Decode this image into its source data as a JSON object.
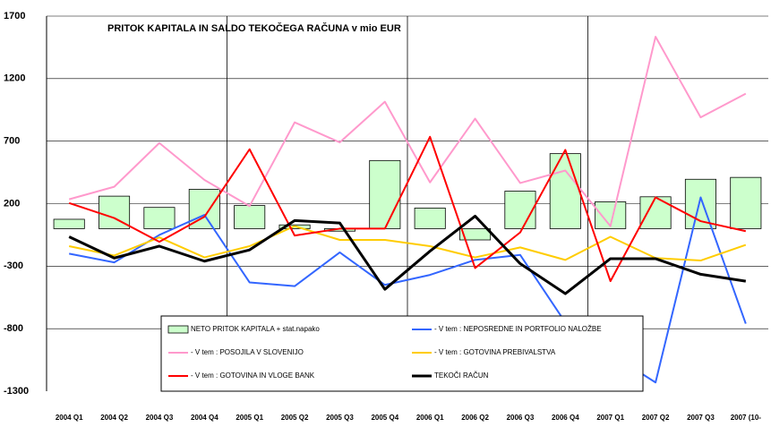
{
  "chart_data": {
    "type": "bar",
    "title": "PRITOK KAPITALA IN SALDO TEKOČEGA RAČUNA v mio EUR",
    "categories": [
      "2004 Q1",
      "2004 Q2",
      "2004 Q3",
      "2004 Q4",
      "2005 Q1",
      "2005 Q2",
      "2005 Q3",
      "2005 Q4",
      "2006 Q1",
      "2006 Q2",
      "2006 Q3",
      "2006 Q4",
      "2007 Q1",
      "2007 Q2",
      "2007 Q3",
      "2007 (10-"
    ],
    "ylim": [
      -1300,
      1700
    ],
    "yticks": [
      -1300,
      -800,
      -300,
      200,
      700,
      1200,
      1700
    ],
    "grid": true,
    "series": [
      {
        "name": "NETO PRITOK KAPITALA + stat.napako",
        "type": "bar",
        "color": "#ccffcc",
        "values": [
          75,
          260,
          170,
          315,
          185,
          30,
          -20,
          545,
          165,
          -90,
          300,
          600,
          215,
          255,
          395,
          410
        ]
      },
      {
        "name": "- V tem : NEPOSREDNE IN PORTFOLIO NALOŽBE",
        "type": "line",
        "color": "#3366ff",
        "values": [
          -200,
          -270,
          -50,
          110,
          -430,
          -460,
          -190,
          -450,
          -370,
          -250,
          -210,
          -750,
          -1000,
          -1230,
          250,
          -760
        ]
      },
      {
        "name": "- V tem : POSOJILA V SLOVENIJO",
        "type": "line",
        "color": "#ff99cc",
        "values": [
          235,
          335,
          685,
          390,
          180,
          850,
          690,
          1015,
          370,
          880,
          365,
          465,
          20,
          1535,
          890,
          1080
        ]
      },
      {
        "name": "- V tem : GOTOVINA PREBIVALSTVA",
        "type": "line",
        "color": "#ffcc00",
        "values": [
          -140,
          -215,
          -70,
          -230,
          -140,
          20,
          -90,
          -90,
          -140,
          -230,
          -150,
          -250,
          -65,
          -235,
          -255,
          -130
        ]
      },
      {
        "name": "- V tem : GOTOVINA IN VLOGE BANK",
        "type": "line",
        "color": "#ff0000",
        "values": [
          205,
          85,
          -105,
          95,
          635,
          -55,
          0,
          0,
          735,
          -315,
          -30,
          630,
          -420,
          250,
          60,
          -20
        ]
      },
      {
        "name": "TEKOČI RAČUN",
        "type": "line",
        "color": "#000000",
        "values": [
          -65,
          -235,
          -140,
          -260,
          -170,
          65,
          45,
          -485,
          -180,
          100,
          -280,
          -520,
          -240,
          -240,
          -365,
          -420
        ]
      }
    ]
  }
}
